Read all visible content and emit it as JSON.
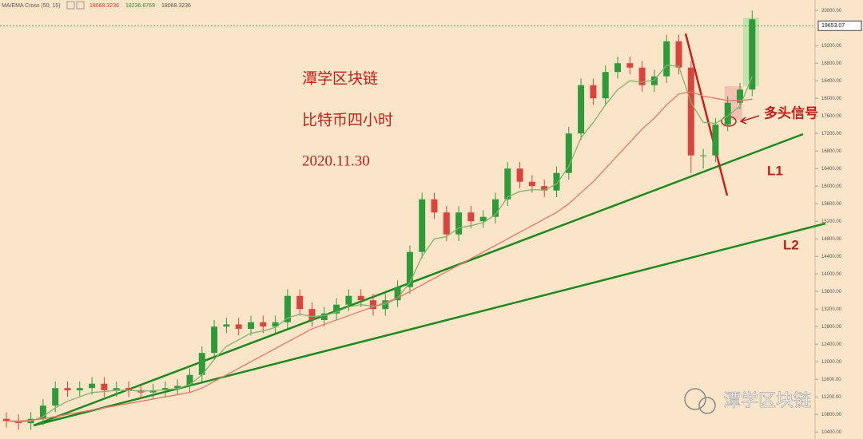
{
  "chart_data": {
    "type": "candlestick",
    "indicator_label": "MA/EMA Cross (50, 15)",
    "indicator_values": [
      {
        "value": 18068.3236,
        "color": "#d43a2f"
      },
      {
        "value": 18236.6769,
        "color": "#2e8b2e"
      },
      {
        "value": 18068.3236,
        "color": "#555555"
      }
    ],
    "annotations": [
      "潭学区块链",
      "比特币四小时",
      "2020.11.30"
    ],
    "signal_label": "多头信号",
    "trend_labels": [
      "L1",
      "L2"
    ],
    "watermark": "潭学区块链",
    "up_color": "#2e9a3a",
    "down_color": "#d9453c",
    "background": "#fbe5c9",
    "last_price": 19653.07,
    "ylim": [
      10240,
      20240
    ],
    "yticks": [
      {
        "value": 10400,
        "label": "10400.00"
      },
      {
        "value": 10800,
        "label": "10800.00"
      },
      {
        "value": 11200,
        "label": "11200.00"
      },
      {
        "value": 11600,
        "label": "11600.00"
      },
      {
        "value": 12000,
        "label": "12000.00"
      },
      {
        "value": 12400,
        "label": "12400.00"
      },
      {
        "value": 12800,
        "label": "12800.00"
      },
      {
        "value": 13200,
        "label": "13200.00"
      },
      {
        "value": 13600,
        "label": "13600.00"
      },
      {
        "value": 14000,
        "label": "14000.00"
      },
      {
        "value": 14400,
        "label": "14400.00"
      },
      {
        "value": 14800,
        "label": "14800.00"
      },
      {
        "value": 15200,
        "label": "15200.00"
      },
      {
        "value": 15600,
        "label": "15600.00"
      },
      {
        "value": 16000,
        "label": "16000.00"
      },
      {
        "value": 16400,
        "label": "16400.00"
      },
      {
        "value": 16800,
        "label": "16800.00"
      },
      {
        "value": 17200,
        "label": "17200.00"
      },
      {
        "value": 17600,
        "label": "17600.00"
      },
      {
        "value": 18000,
        "label": "18000.00"
      },
      {
        "value": 18400,
        "label": "18400.00"
      },
      {
        "value": 18800,
        "label": "18800.00"
      },
      {
        "value": 19200,
        "label": "19200.00"
      },
      {
        "value": 20000,
        "label": "20000.00"
      }
    ],
    "open": [
      10700,
      10650,
      10600,
      10700,
      11000,
      11400,
      11350,
      11400,
      11500,
      11350,
      11400,
      11350,
      11300,
      11350,
      11400,
      11450,
      11700,
      12200,
      12800,
      12850,
      12750,
      12900,
      12800,
      12900,
      13500,
      13200,
      12950,
      13100,
      13300,
      13500,
      13400,
      13200,
      13400,
      13700,
      14500,
      15700,
      15400,
      14900,
      15400,
      15200,
      15300,
      15700,
      16400,
      16100,
      16000,
      15900,
      16300,
      17200,
      18300,
      18000,
      18600,
      18800,
      18700,
      18300,
      18500,
      19300,
      18700,
      16700,
      16700,
      17400,
      17900,
      18200
    ],
    "high": [
      10850,
      10800,
      10850,
      11150,
      11550,
      11550,
      11550,
      11650,
      11650,
      11550,
      11550,
      11500,
      11500,
      11550,
      11600,
      11850,
      12350,
      12950,
      13000,
      13000,
      13050,
      13050,
      13050,
      13650,
      13650,
      13350,
      13250,
      13450,
      13650,
      13650,
      13550,
      13550,
      13850,
      14650,
      15850,
      15850,
      15550,
      15550,
      15550,
      15450,
      15850,
      16550,
      16550,
      16250,
      16150,
      16450,
      17350,
      18450,
      18450,
      18750,
      18950,
      18950,
      18850,
      18650,
      19450,
      19450,
      18850,
      16850,
      17550,
      18050,
      18350,
      20000
    ],
    "low": [
      10500,
      10450,
      10450,
      10550,
      10850,
      11200,
      11200,
      11250,
      11200,
      11200,
      11200,
      11150,
      11150,
      11200,
      11250,
      11300,
      11550,
      12050,
      12650,
      12600,
      12600,
      12650,
      12650,
      12750,
      13050,
      12800,
      12800,
      12950,
      13150,
      13250,
      13050,
      13050,
      13250,
      13550,
      14350,
      15250,
      14750,
      14750,
      15050,
      15050,
      15150,
      15550,
      15950,
      15850,
      15750,
      15750,
      16150,
      17050,
      17850,
      17850,
      18450,
      18550,
      18150,
      18150,
      18350,
      18550,
      16300,
      16400,
      16550,
      17250,
      17750,
      18050
    ],
    "close": [
      10650,
      10600,
      10700,
      11000,
      11400,
      11350,
      11400,
      11500,
      11350,
      11400,
      11350,
      11300,
      11350,
      11400,
      11450,
      11700,
      12200,
      12800,
      12850,
      12750,
      12900,
      12800,
      12900,
      13500,
      13200,
      12950,
      13100,
      13300,
      13500,
      13400,
      13200,
      13400,
      13700,
      14500,
      15700,
      15400,
      14900,
      15400,
      15200,
      15300,
      15700,
      16400,
      16100,
      16000,
      15900,
      16300,
      17200,
      18300,
      18000,
      18600,
      18800,
      18700,
      18300,
      18500,
      19300,
      18700,
      16700,
      16700,
      17400,
      17900,
      18200,
      19800
    ],
    "ma_lines": [
      {
        "color": "#7fb36a",
        "values": [
          10650,
          10630,
          10650,
          10750,
          10950,
          11100,
          11200,
          11300,
          11320,
          11350,
          11350,
          11330,
          11340,
          11360,
          11390,
          11480,
          11700,
          12050,
          12350,
          12500,
          12650,
          12700,
          12780,
          13000,
          13080,
          13030,
          13050,
          13130,
          13250,
          13300,
          13270,
          13310,
          13450,
          13800,
          14400,
          14800,
          14850,
          15050,
          15100,
          15170,
          15350,
          15750,
          15880,
          15920,
          15910,
          16050,
          16450,
          17100,
          17450,
          17850,
          18200,
          18400,
          18370,
          18420,
          18750,
          18730,
          17900,
          17450,
          17430,
          17600,
          17820,
          18500
        ]
      },
      {
        "color": "#e8756b",
        "values": [
          10650,
          10650,
          10670,
          10700,
          10750,
          10800,
          10850,
          10900,
          10950,
          11000,
          11050,
          11100,
          11150,
          11200,
          11250,
          11300,
          11400,
          11550,
          11700,
          11850,
          12000,
          12150,
          12300,
          12450,
          12600,
          12750,
          12850,
          12950,
          13050,
          13150,
          13250,
          13350,
          13450,
          13600,
          13750,
          13900,
          14050,
          14200,
          14350,
          14500,
          14650,
          14800,
          14950,
          15100,
          15250,
          15400,
          15600,
          15850,
          16100,
          16400,
          16700,
          17000,
          17300,
          17550,
          17850,
          18100,
          18150,
          18050,
          18000,
          17950,
          17950,
          17980
        ]
      }
    ]
  }
}
